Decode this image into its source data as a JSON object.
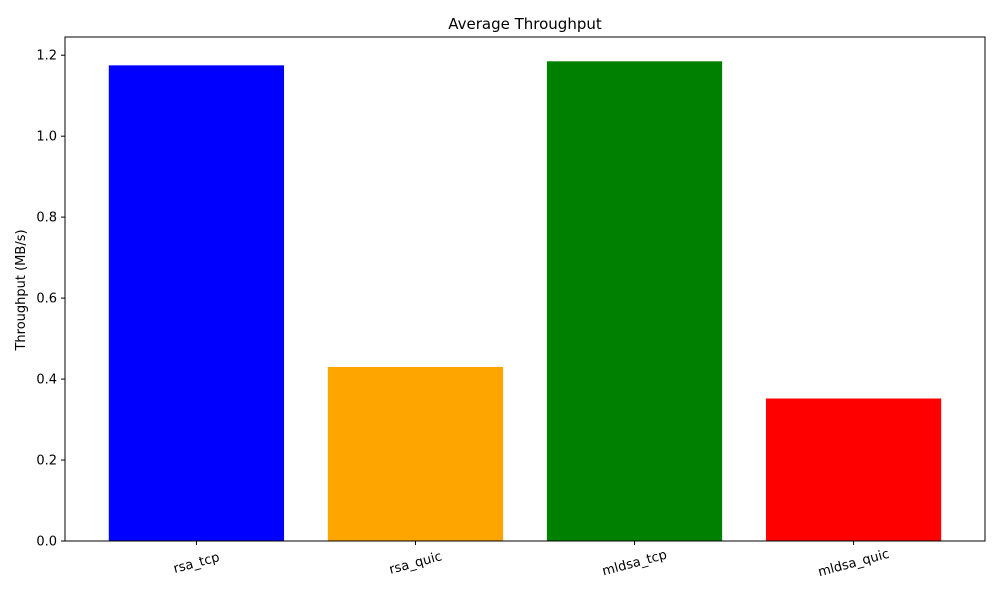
{
  "chart_data": {
    "type": "bar",
    "title": "Average Throughput",
    "xlabel": "",
    "ylabel": "Throughput (MB/s)",
    "categories": [
      "rsa_tcp",
      "rsa_quic",
      "mldsa_tcp",
      "mldsa_quic"
    ],
    "values": [
      1.175,
      0.43,
      1.185,
      0.352
    ],
    "colors": [
      "#0000ff",
      "#ffa500",
      "#008000",
      "#ff0000"
    ],
    "ylim": [
      0,
      1.245
    ],
    "yticks": [
      0.0,
      0.2,
      0.4,
      0.6,
      0.8,
      1.0,
      1.2
    ],
    "ytick_labels": [
      "0.0",
      "0.2",
      "0.4",
      "0.6",
      "0.8",
      "1.0",
      "1.2"
    ],
    "xtick_rotation_deg": -15,
    "grid": false,
    "legend": "none"
  }
}
